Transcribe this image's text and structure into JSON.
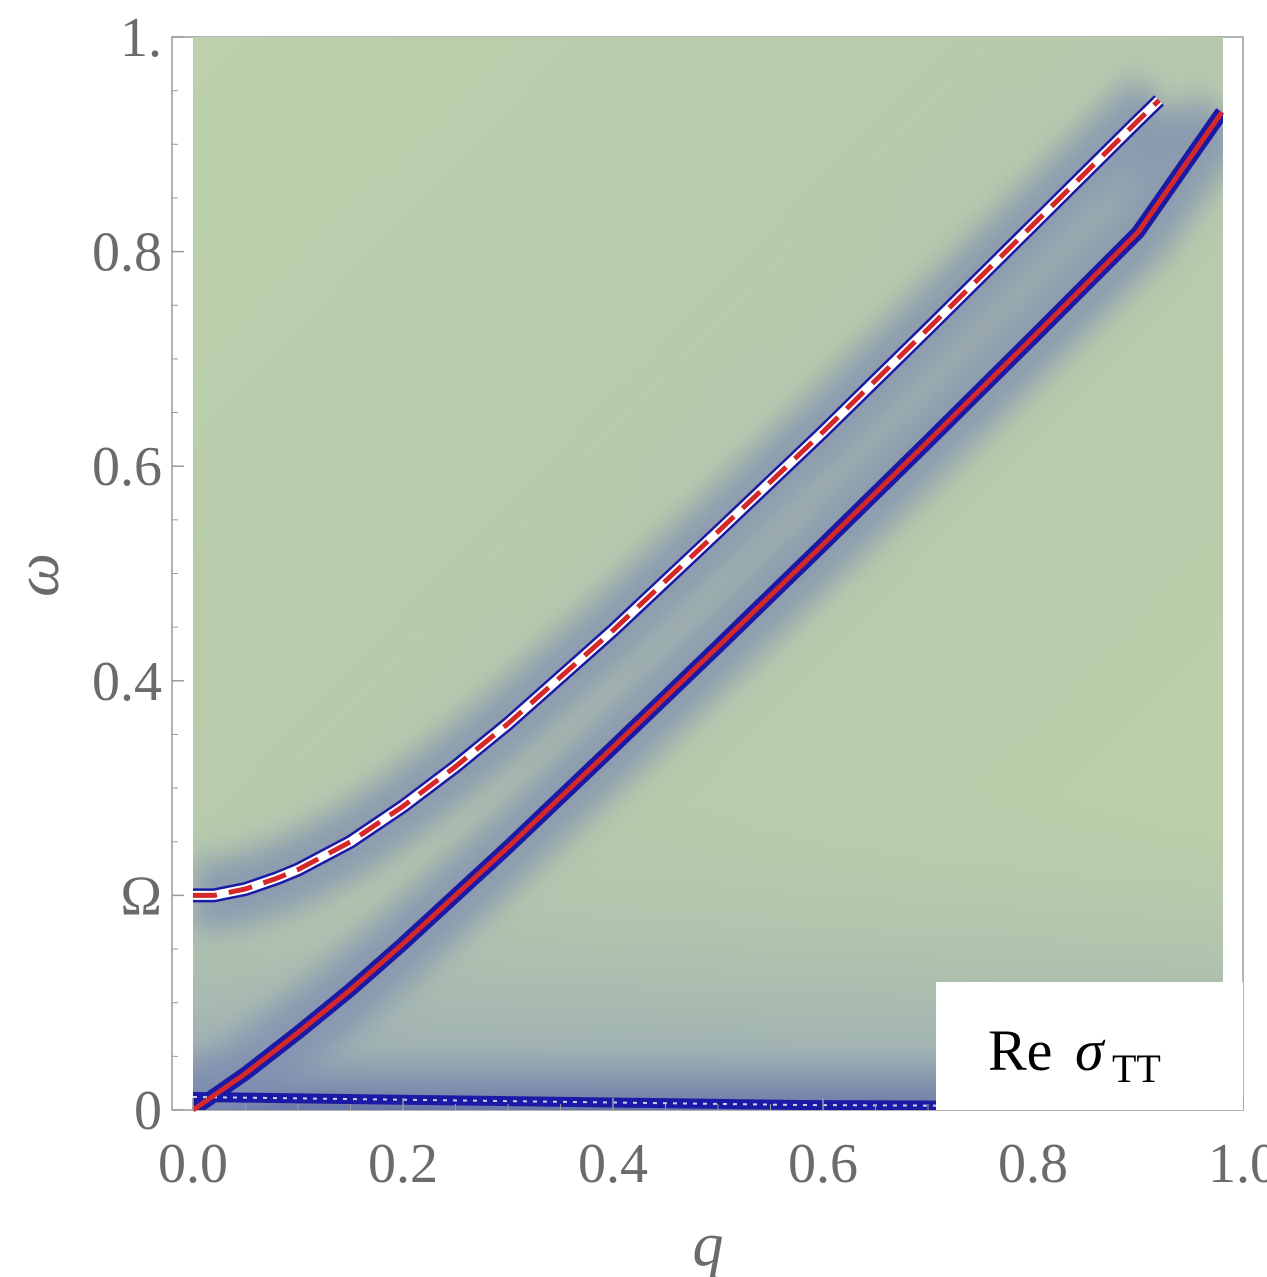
{
  "chart_data": {
    "type": "heatmap",
    "title": "",
    "xlabel": "q",
    "ylabel": "ω",
    "xlim": [
      0.0,
      1.0
    ],
    "ylim": [
      0.0,
      1.0
    ],
    "x_ticks": [
      {
        "value": 0.0,
        "label": "0.0"
      },
      {
        "value": 0.2,
        "label": "0.2"
      },
      {
        "value": 0.4,
        "label": "0.4"
      },
      {
        "value": 0.6,
        "label": "0.6"
      },
      {
        "value": 0.8,
        "label": "0.8"
      },
      {
        "value": 1.0,
        "label": "1.0"
      }
    ],
    "y_ticks": [
      {
        "value": 0.0,
        "label": "0"
      },
      {
        "value": 0.2,
        "label": "Ω"
      },
      {
        "value": 0.4,
        "label": "0.4"
      },
      {
        "value": 0.6,
        "label": "0.6"
      },
      {
        "value": 0.8,
        "label": "0.8"
      },
      {
        "value": 1.0,
        "label": "1."
      }
    ],
    "legend": {
      "text": "Re",
      "symbol": "σ",
      "subscript": "TT",
      "placement": "bottom-right"
    },
    "heatmap_colors": {
      "background": "#b9cfa9",
      "peak": "#1a1aa6",
      "peak_center": "#ffffff"
    },
    "series": [
      {
        "style": "dashed",
        "color": "#d4282a",
        "x": [
          0.0,
          0.02,
          0.05,
          0.08,
          0.1,
          0.15,
          0.2,
          0.25,
          0.3,
          0.4,
          0.5,
          0.6,
          0.7,
          0.8,
          0.9,
          0.92
        ],
        "y": [
          0.2,
          0.2,
          0.206,
          0.216,
          0.224,
          0.25,
          0.283,
          0.32,
          0.36,
          0.447,
          0.539,
          0.632,
          0.728,
          0.825,
          0.922,
          0.941
        ]
      },
      {
        "style": "solid",
        "color": "#d4282a",
        "x": [
          0.0,
          0.05,
          0.1,
          0.15,
          0.2,
          0.3,
          0.4,
          0.5,
          0.6,
          0.7,
          0.8,
          0.9,
          0.98
        ],
        "y": [
          0.0,
          0.034,
          0.072,
          0.112,
          0.155,
          0.245,
          0.338,
          0.432,
          0.527,
          0.623,
          0.72,
          0.818,
          0.93
        ]
      }
    ]
  }
}
